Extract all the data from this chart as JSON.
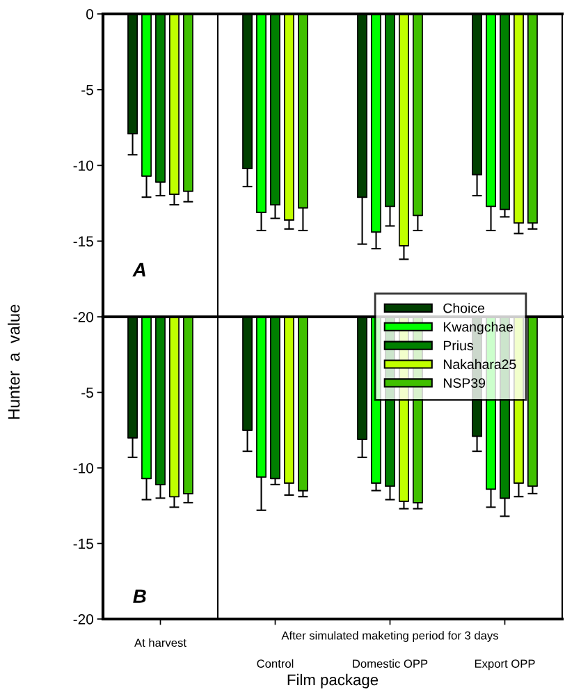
{
  "chart_data": [
    {
      "type": "bar",
      "ylabel": "Hunter  a  value",
      "series": [
        {
          "name": "Choice",
          "color": "#004000",
          "values": [
            -7.9,
            -10.2,
            -12.1,
            -10.6
          ],
          "errors": [
            [
              -9.3,
              -7.9
            ],
            [
              -11.4,
              -10.2
            ],
            [
              -15.2,
              -12.1
            ],
            [
              -12.0,
              -10.6
            ]
          ]
        },
        {
          "name": "Kwangchae",
          "color": "#00ff00",
          "values": [
            -10.7,
            -13.1,
            -14.4,
            -12.7
          ],
          "errors": [
            [
              -12.1,
              -10.7
            ],
            [
              -14.3,
              -13.1
            ],
            [
              -15.5,
              -14.4
            ],
            [
              -14.3,
              -12.7
            ]
          ]
        },
        {
          "name": "Prius",
          "color": "#008000",
          "values": [
            -11.1,
            -12.6,
            -12.7,
            -12.9
          ],
          "errors": [
            [
              -12.0,
              -11.1
            ],
            [
              -13.5,
              -12.6
            ],
            [
              -14.0,
              -12.7
            ],
            [
              -13.4,
              -12.9
            ]
          ]
        },
        {
          "name": "Nakahara25",
          "color": "#c0ff00",
          "values": [
            -11.9,
            -13.6,
            -15.3,
            -13.8
          ],
          "errors": [
            [
              -12.6,
              -11.9
            ],
            [
              -14.2,
              -13.6
            ],
            [
              -16.2,
              -15.3
            ],
            [
              -14.5,
              -13.8
            ]
          ]
        },
        {
          "name": "NSP39",
          "color": "#40c000",
          "values": [
            -11.7,
            -12.8,
            -13.3,
            -13.8
          ],
          "errors": [
            [
              -12.4,
              -11.7
            ],
            [
              -14.3,
              -12.8
            ],
            [
              -14.3,
              -13.3
            ],
            [
              -14.2,
              -13.8
            ]
          ]
        }
      ],
      "ylim": [
        -20,
        0
      ],
      "yticks": [
        0,
        -5,
        -10,
        -15,
        -20
      ],
      "tick_labels": "y",
      "grid": false,
      "legend": "right",
      "annotations": [
        "A"
      ]
    },
    {
      "type": "bar",
      "xlabel": "Film package",
      "categories": [
        "At harvest",
        "Control",
        "Domestic OPP",
        "Export OPP"
      ],
      "series": [
        {
          "color": "#004000",
          "values": [
            -8.0,
            -7.5,
            -8.1,
            -7.9
          ],
          "errors": [
            [
              -9.3,
              -8.0
            ],
            [
              -8.9,
              -7.5
            ],
            [
              -9.3,
              -8.1
            ],
            [
              -8.9,
              -7.9
            ]
          ]
        },
        {
          "color": "#00ff00",
          "values": [
            -10.7,
            -10.6,
            -11.0,
            -11.4
          ],
          "errors": [
            [
              -12.1,
              -10.7
            ],
            [
              -12.8,
              -10.6
            ],
            [
              -11.5,
              -11.0
            ],
            [
              -12.6,
              -11.4
            ]
          ]
        },
        {
          "color": "#008000",
          "values": [
            -11.1,
            -10.7,
            -11.2,
            -12.0
          ],
          "errors": [
            [
              -12.0,
              -11.1
            ],
            [
              -11.1,
              -10.7
            ],
            [
              -12.1,
              -11.2
            ],
            [
              -13.2,
              -12.0
            ]
          ]
        },
        {
          "color": "#c0ff00",
          "values": [
            -11.9,
            -11.0,
            -12.2,
            -11.0
          ],
          "errors": [
            [
              -12.6,
              -11.9
            ],
            [
              -11.8,
              -11.0
            ],
            [
              -12.7,
              -12.2
            ],
            [
              -11.9,
              -11.0
            ]
          ]
        },
        {
          "color": "#40c000",
          "values": [
            -11.7,
            -11.5,
            -12.3,
            -11.2
          ],
          "errors": [
            [
              -12.3,
              -11.7
            ],
            [
              -11.9,
              -11.5
            ],
            [
              -12.7,
              -12.3
            ],
            [
              -11.7,
              -11.2
            ]
          ]
        }
      ],
      "ylim": [
        -20,
        0
      ],
      "yticks": [
        -5,
        -10,
        -15,
        -20
      ],
      "grid": false,
      "legend": false,
      "annotations": [
        "B",
        "After simulated maketing period for 3 days"
      ]
    }
  ]
}
